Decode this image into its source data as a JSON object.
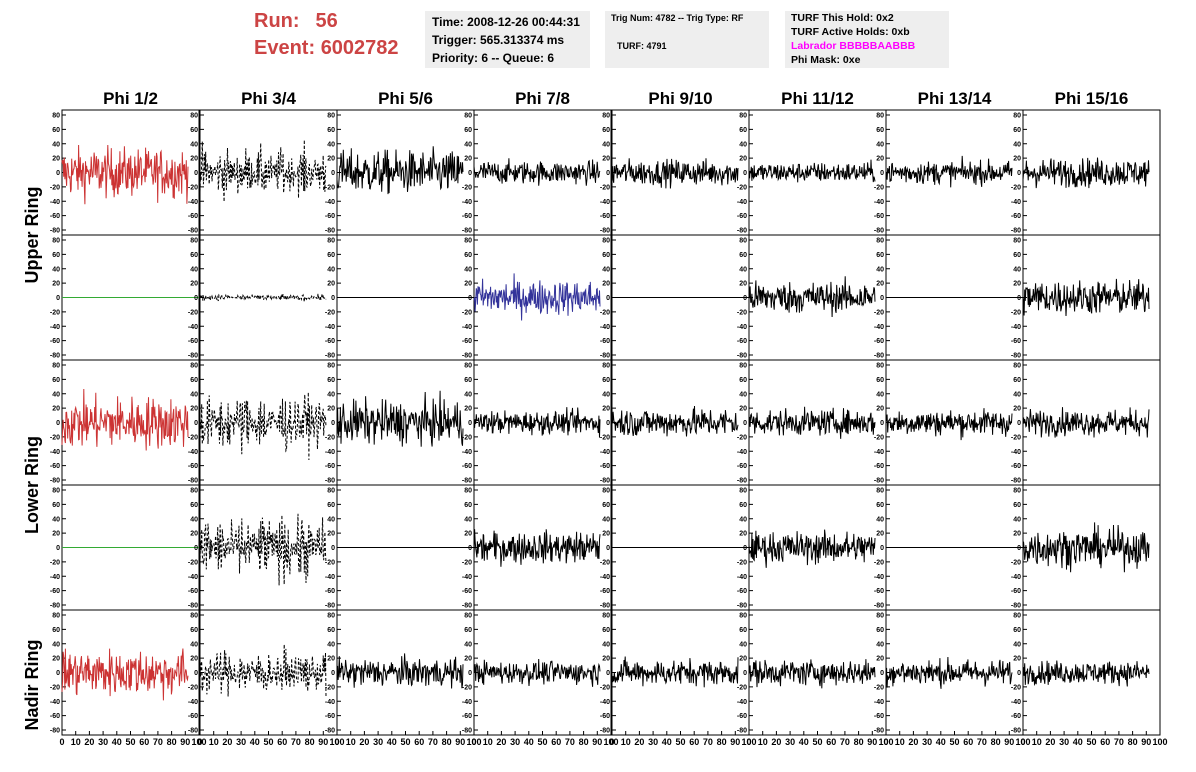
{
  "header": {
    "run_label": "Run:",
    "run_value": "56",
    "event_label": "Event:",
    "event_value": "6002782",
    "time": "Time: 2008-12-26 00:44:31",
    "trigger": "Trigger: 565.313374 ms",
    "priority": "Priority: 6 -- Queue: 6",
    "trig_num": "Trig Num: 4782 -- Trig Type: RF",
    "turf": "TURF: 4791",
    "turf_this_hold": "TURF This Hold: 0x2",
    "turf_active_holds": "TURF Active Holds: 0xb",
    "labrador": "Labrador BBBBBAABBB",
    "phi_mask": "Phi Mask: 0xe"
  },
  "chart_data": {
    "type": "line",
    "column_titles": [
      "Phi 1/2",
      "Phi 3/4",
      "Phi 5/6",
      "Phi 7/8",
      "Phi 9/10",
      "Phi 11/12",
      "Phi 13/14",
      "Phi 15/16"
    ],
    "ring_titles": [
      "Upper Ring",
      "Lower Ring",
      "Nadir Ring"
    ],
    "ylim": [
      -80,
      80
    ],
    "y_ticks": [
      -80,
      -60,
      -40,
      -20,
      0,
      20,
      40,
      60,
      80
    ],
    "xlim": [
      0,
      100
    ],
    "x_ticks": [
      0,
      10,
      20,
      30,
      40,
      50,
      60,
      70,
      80,
      90,
      100
    ],
    "x_tick_labels": [
      "0",
      "10",
      "20",
      "30",
      "40",
      "50",
      "60",
      "70",
      "80",
      "90",
      "100"
    ],
    "waveform_x_max": 92,
    "colors": {
      "triggered": "#cc3333",
      "highlight": "#33339a",
      "flat": "#33aa33",
      "normal": "#000000"
    },
    "rows": [
      [
        {
          "style": "triggered",
          "amp": 17
        },
        {
          "style": "dashed",
          "amp": 15
        },
        {
          "style": "normal",
          "amp": 15
        },
        {
          "style": "normal",
          "amp": 8
        },
        {
          "style": "normal",
          "amp": 9
        },
        {
          "style": "normal",
          "amp": 7
        },
        {
          "style": "normal",
          "amp": 8
        },
        {
          "style": "normal",
          "amp": 10
        }
      ],
      [
        {
          "style": "flat",
          "amp": 0
        },
        {
          "style": "dashed",
          "amp": 2
        },
        {
          "style": "zero",
          "amp": 0
        },
        {
          "style": "highlight",
          "amp": 12
        },
        {
          "style": "zero",
          "amp": 0
        },
        {
          "style": "normal",
          "amp": 11
        },
        {
          "style": "zero",
          "amp": 0
        },
        {
          "style": "normal",
          "amp": 12
        }
      ],
      [
        {
          "style": "triggered",
          "amp": 18
        },
        {
          "style": "dashed",
          "amp": 18
        },
        {
          "style": "normal",
          "amp": 15
        },
        {
          "style": "normal",
          "amp": 8
        },
        {
          "style": "normal",
          "amp": 10
        },
        {
          "style": "normal",
          "amp": 9
        },
        {
          "style": "normal",
          "amp": 9
        },
        {
          "style": "normal",
          "amp": 9
        }
      ],
      [
        {
          "style": "flat",
          "amp": 0
        },
        {
          "style": "dashed",
          "amp": 20
        },
        {
          "style": "zero",
          "amp": 0
        },
        {
          "style": "normal",
          "amp": 11
        },
        {
          "style": "zero",
          "amp": 0
        },
        {
          "style": "normal",
          "amp": 11
        },
        {
          "style": "zero",
          "amp": 0
        },
        {
          "style": "normal",
          "amp": 13
        }
      ],
      [
        {
          "style": "triggered",
          "amp": 16
        },
        {
          "style": "dashed",
          "amp": 14
        },
        {
          "style": "normal",
          "amp": 10
        },
        {
          "style": "normal",
          "amp": 8
        },
        {
          "style": "normal",
          "amp": 9
        },
        {
          "style": "normal",
          "amp": 9
        },
        {
          "style": "normal",
          "amp": 9
        },
        {
          "style": "normal",
          "amp": 8
        }
      ]
    ]
  }
}
